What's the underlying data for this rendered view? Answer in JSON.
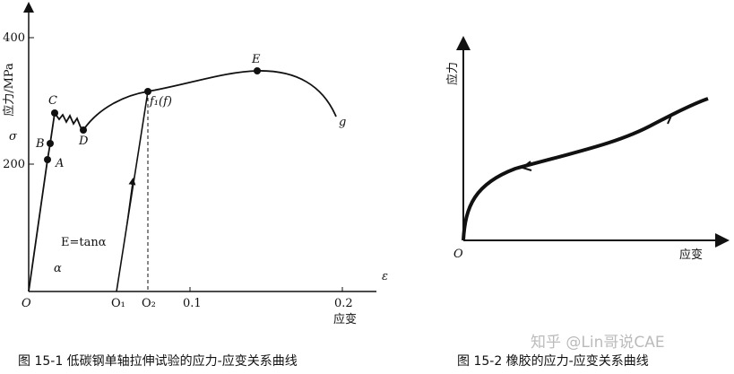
{
  "figure_1": {
    "y_label": "应力/MPa",
    "y_symbol": "σ",
    "x_symbol": "ε",
    "x_label": "应变",
    "y_ticks": [
      "400",
      "200"
    ],
    "x_ticks": [
      "O",
      "O₁",
      "O₂",
      "0.1",
      "0.2"
    ],
    "points": [
      "A",
      "B",
      "C",
      "D",
      "f₁(f)",
      "E",
      "g"
    ],
    "annotations": [
      "E=tanα",
      "α"
    ],
    "caption": "图 15-1   低碳钢单轴拉伸试验的应力-应变关系曲线"
  },
  "figure_2": {
    "y_label": "应力",
    "origin": "O",
    "x_label": "应变",
    "caption": "图 15-2   橡胶的应力-应变关系曲线"
  },
  "watermark": "知乎 @Lin哥说CAE"
}
